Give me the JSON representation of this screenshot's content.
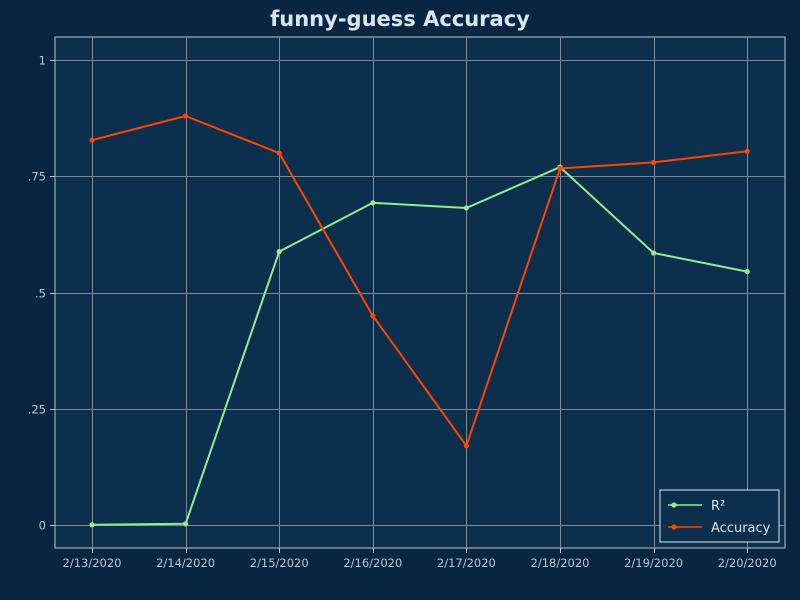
{
  "chart_data": {
    "type": "line",
    "title": "funny-guess Accuracy",
    "xlabel": "",
    "ylabel": "",
    "categories": [
      "2/13/2020",
      "2/14/2020",
      "2/15/2020",
      "2/16/2020",
      "2/17/2020",
      "2/18/2020",
      "2/19/2020",
      "2/20/2020"
    ],
    "ylim": [
      -0.05,
      1.05
    ],
    "yticks": [
      0,
      0.25,
      0.5,
      0.75,
      1
    ],
    "ytick_labels": [
      "0",
      ".25",
      ".5",
      ".75",
      "1"
    ],
    "grid": true,
    "legend_position": "bottom-right",
    "series": [
      {
        "name": "R²",
        "color": "#90ee90",
        "values": [
          0.0,
          0.002,
          0.588,
          0.693,
          0.682,
          0.77,
          0.585,
          0.545
        ]
      },
      {
        "name": "Accuracy",
        "color": "#ff4500",
        "values": [
          0.828,
          0.88,
          0.8,
          0.45,
          0.17,
          0.767,
          0.78,
          0.804
        ]
      }
    ],
    "colors": {
      "background": "#082641",
      "plot_background": "#0b2f4d",
      "grid": "#7f8a95",
      "text": "#dde6f0"
    }
  }
}
